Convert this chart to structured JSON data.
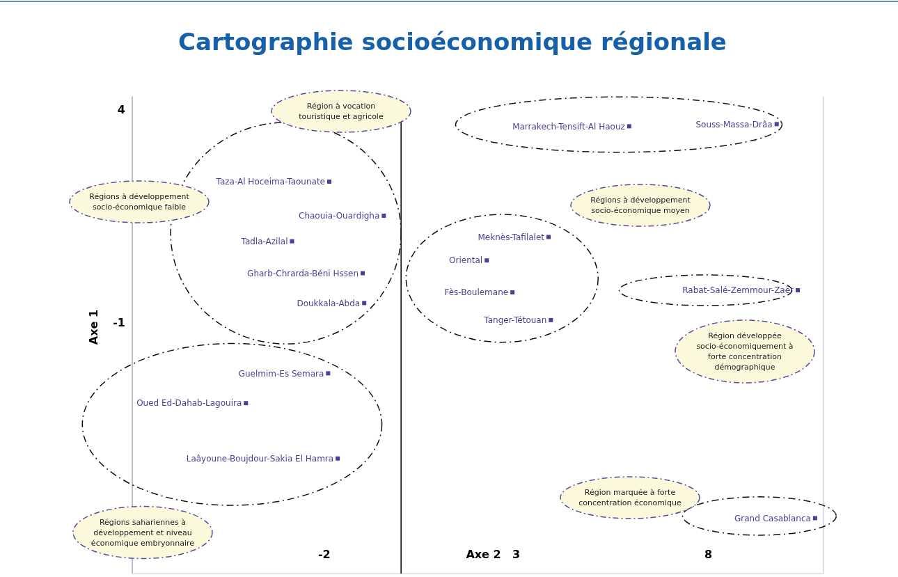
{
  "chart_data": {
    "type": "scatter",
    "title": "Cartographie socioéconomique régionale",
    "xlabel": "Axe 2",
    "ylabel": "Axe 1",
    "xlim": [
      -7,
      11
    ],
    "xticks": [
      -2,
      3,
      8
    ],
    "ylim": [
      -6.9,
      4.3
    ],
    "yticks": [
      4,
      -1
    ],
    "grid": false,
    "marker": "square",
    "ref_lines": [
      {
        "axis": "x",
        "value": 0,
        "color": "#000000"
      }
    ],
    "series": [
      {
        "color": "#4b3f93",
        "x": [
          -1.87,
          -0.45,
          -2.84,
          -1.0,
          -0.96,
          -1.9,
          -4.04,
          -1.65,
          3.84,
          2.23,
          2.9,
          3.9,
          5.94,
          9.78,
          10.33,
          10.78
        ],
        "values": [
          2.3,
          1.5,
          0.9,
          0.15,
          -0.55,
          -2.2,
          -2.9,
          -4.2,
          1.0,
          0.45,
          -0.3,
          -0.95,
          3.6,
          3.65,
          -0.25,
          -5.6
        ]
      }
    ],
    "annotations": [
      {
        "text": "Taza-Al Hoceima-Taounate",
        "x": -1.87,
        "y": 2.3
      },
      {
        "text": "Chaouia-Ouardigha",
        "x": -0.45,
        "y": 1.5
      },
      {
        "text": "Tadla-Azilal",
        "x": -2.84,
        "y": 0.9
      },
      {
        "text": "Gharb-Chrarda-Béni Hssen",
        "x": -1.0,
        "y": 0.15
      },
      {
        "text": "Doukkala-Abda",
        "x": -0.96,
        "y": -0.55
      },
      {
        "text": "Guelmim-Es Semara",
        "x": -1.9,
        "y": -2.2
      },
      {
        "text": "Oued Ed-Dahab-Lagouira",
        "x": -4.04,
        "y": -2.9
      },
      {
        "text": "Laâyoune-Boujdour-Sakia El Hamra",
        "x": -1.65,
        "y": -4.2
      },
      {
        "text": "Meknès-Tafilalet",
        "x": 3.84,
        "y": 1.0
      },
      {
        "text": "Oriental",
        "x": 2.23,
        "y": 0.45
      },
      {
        "text": "Fès-Boulemane",
        "x": 2.9,
        "y": -0.3
      },
      {
        "text": "Tanger-Tétouan",
        "x": 3.9,
        "y": -0.95
      },
      {
        "text": "Marrakech-Tensift-Al Haouz",
        "x": 5.94,
        "y": 3.6
      },
      {
        "text": "Souss-Massa-Drâa",
        "x": 9.78,
        "y": 3.65
      },
      {
        "text": "Rabat-Salé-Zemmour-Zaër",
        "x": 10.33,
        "y": -0.25
      },
      {
        "text": "Grand Casablanca",
        "x": 10.78,
        "y": -5.6
      },
      "Région à vocation touristique et agricole",
      "Régions à développement socio-économique faible",
      "Régions à développement socio-économique moyen",
      "Région développée socio-économiquement à forte concentration démographique",
      "Régions sahariennes à développement et niveau économique embryonnaire",
      "Région marquée à forte concentration économique"
    ]
  }
}
